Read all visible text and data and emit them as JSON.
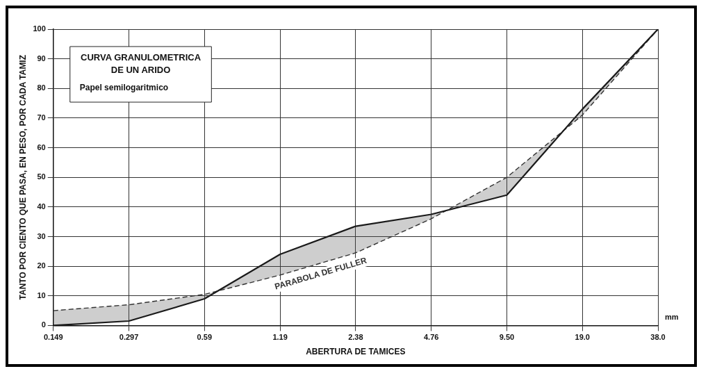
{
  "chart_data": {
    "type": "line",
    "title": "CURVA GRANULOMETRICA\nDE UN ARIDO",
    "subtitle": "Papel semilogaritmico",
    "xlabel": "ABERTURA DE TAMICES",
    "ylabel": "TANTO POR CIENTO QUE PASA, EN PESO, POR CADA TAMIZ",
    "annotations": [
      "mm"
    ],
    "categories": [
      "0.149",
      "0.297",
      "0.59",
      "1.19",
      "2.38",
      "4.76",
      "9.50",
      "19.0",
      "38.0"
    ],
    "series": [
      {
        "color": "#1a1a1a",
        "line_style": "solid",
        "values": [
          0,
          1.5,
          9,
          24,
          33.5,
          37.5,
          44,
          73,
          100
        ]
      },
      {
        "name": "PARABOLA DE FULLER",
        "color": "#333333",
        "line_style": "dashed",
        "values": [
          5,
          7,
          10.5,
          17,
          24.5,
          36,
          50,
          71,
          100
        ]
      }
    ],
    "ylim": [
      0,
      100
    ],
    "yticks": [
      0,
      10,
      20,
      30,
      40,
      50,
      60,
      70,
      80,
      90,
      100
    ],
    "grid": true,
    "marker": "none",
    "legend": false
  }
}
